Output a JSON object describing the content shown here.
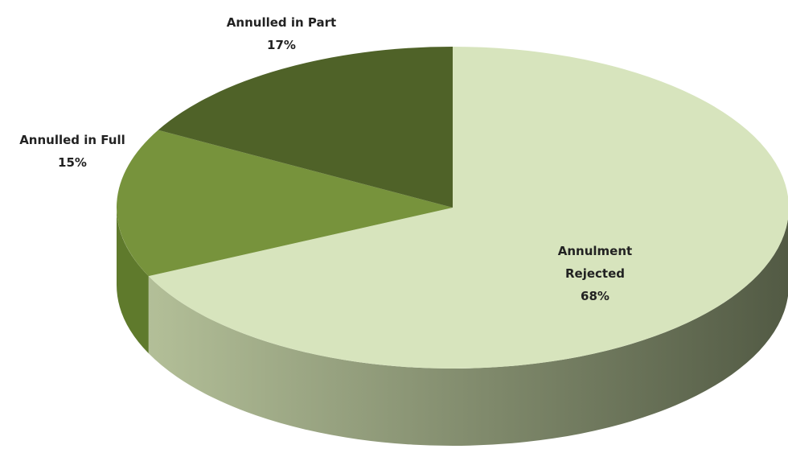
{
  "chart_data": {
    "type": "pie",
    "categories": [
      "Annulment Rejected",
      "Annulled in Full",
      "Annulled in Part"
    ],
    "values": [
      68,
      15,
      17
    ],
    "value_labels": [
      "68%",
      "15%",
      "17%"
    ],
    "colors": [
      "#d7e4bd",
      "#77933c",
      "#4f6228"
    ]
  }
}
